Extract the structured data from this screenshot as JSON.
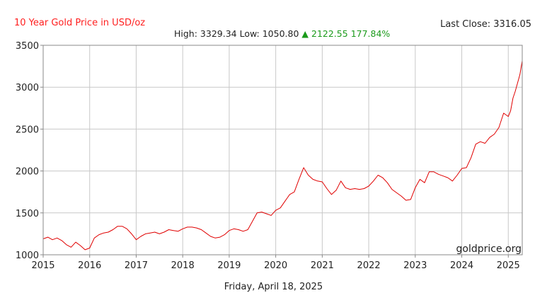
{
  "header": {
    "title": "10 Year Gold Price in USD/oz",
    "last_close_label": "Last Close: 3316.05",
    "stats": {
      "high": "High: 3329.34",
      "low": "Low: 1050.80",
      "arrow": "▲",
      "change": "2122.55",
      "change_pct": "177.84%"
    }
  },
  "footer": {
    "date": "Friday, April 18, 2025",
    "watermark": "goldprice.org"
  },
  "colors": {
    "title": "#ff2020",
    "line": "#e00000",
    "grid": "#c8c8c8",
    "axis": "#888888",
    "up": "#1a9a1a"
  },
  "chart_data": {
    "type": "line",
    "title": "10 Year Gold Price in USD/oz",
    "xlabel": "",
    "ylabel": "",
    "xlim": [
      2015,
      2025.3
    ],
    "ylim": [
      1000,
      3500
    ],
    "x_ticks": [
      "2015",
      "2016",
      "2017",
      "2018",
      "2019",
      "2020",
      "2021",
      "2022",
      "2023",
      "2024",
      "2025"
    ],
    "y_ticks": [
      1000,
      1500,
      2000,
      2500,
      3000,
      3500
    ],
    "grid": true,
    "legend": "none",
    "series": [
      {
        "x": [
          2015.0,
          2015.1,
          2015.2,
          2015.3,
          2015.4,
          2015.5,
          2015.6,
          2015.7,
          2015.8,
          2015.9,
          2016.0,
          2016.1,
          2016.2,
          2016.3,
          2016.4,
          2016.5,
          2016.6,
          2016.7,
          2016.8,
          2016.9,
          2017.0,
          2017.1,
          2017.2,
          2017.3,
          2017.4,
          2017.5,
          2017.6,
          2017.7,
          2017.8,
          2017.9,
          2018.0,
          2018.1,
          2018.2,
          2018.3,
          2018.4,
          2018.5,
          2018.6,
          2018.7,
          2018.8,
          2018.9,
          2019.0,
          2019.1,
          2019.2,
          2019.3,
          2019.4,
          2019.5,
          2019.6,
          2019.7,
          2019.8,
          2019.9,
          2020.0,
          2020.1,
          2020.2,
          2020.25,
          2020.3,
          2020.4,
          2020.5,
          2020.6,
          2020.7,
          2020.8,
          2020.9,
          2021.0,
          2021.1,
          2021.2,
          2021.3,
          2021.4,
          2021.5,
          2021.6,
          2021.7,
          2021.8,
          2021.9,
          2022.0,
          2022.1,
          2022.2,
          2022.3,
          2022.4,
          2022.5,
          2022.6,
          2022.7,
          2022.8,
          2022.9,
          2023.0,
          2023.1,
          2023.2,
          2023.3,
          2023.4,
          2023.5,
          2023.6,
          2023.7,
          2023.8,
          2023.9,
          2024.0,
          2024.1,
          2024.2,
          2024.3,
          2024.4,
          2024.5,
          2024.6,
          2024.7,
          2024.8,
          2024.9,
          2025.0,
          2025.05,
          2025.1,
          2025.15,
          2025.2,
          2025.25,
          2025.3
        ],
        "y": [
          1190,
          1210,
          1180,
          1200,
          1170,
          1120,
          1090,
          1150,
          1110,
          1060,
          1080,
          1200,
          1240,
          1260,
          1270,
          1300,
          1340,
          1340,
          1310,
          1250,
          1180,
          1220,
          1250,
          1260,
          1270,
          1250,
          1270,
          1300,
          1290,
          1280,
          1310,
          1330,
          1330,
          1320,
          1300,
          1260,
          1220,
          1200,
          1210,
          1240,
          1290,
          1310,
          1300,
          1280,
          1300,
          1400,
          1500,
          1510,
          1490,
          1470,
          1530,
          1560,
          1640,
          1680,
          1720,
          1750,
          1900,
          2040,
          1950,
          1900,
          1880,
          1870,
          1790,
          1720,
          1770,
          1880,
          1800,
          1780,
          1790,
          1780,
          1790,
          1820,
          1880,
          1950,
          1920,
          1860,
          1780,
          1740,
          1700,
          1650,
          1660,
          1800,
          1900,
          1860,
          1990,
          1990,
          1960,
          1940,
          1920,
          1880,
          1950,
          2030,
          2040,
          2160,
          2320,
          2350,
          2330,
          2400,
          2440,
          2520,
          2690,
          2650,
          2720,
          2870,
          2950,
          3050,
          3150,
          3316
        ]
      }
    ]
  }
}
